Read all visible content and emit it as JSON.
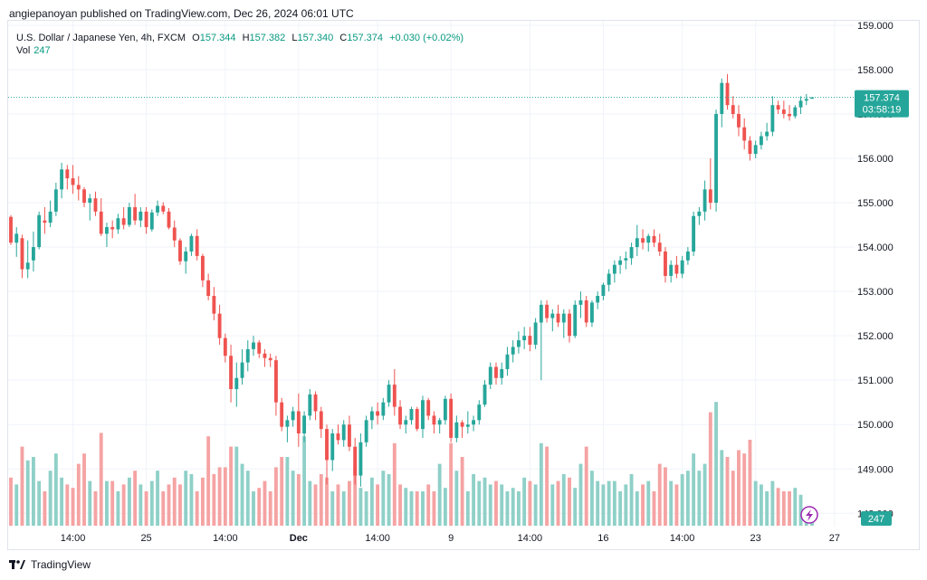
{
  "header": {
    "publisher_text": "angiepanoyan published on TradingView.com, Dec 26, 2024 06:01 UTC"
  },
  "legend": {
    "symbol": "U.S. Dollar / Japanese Yen, 4h, FXCM",
    "open_label": "O",
    "open": "157.344",
    "high_label": "H",
    "high": "157.382",
    "low_label": "L",
    "low": "157.340",
    "close_label": "C",
    "close": "157.374",
    "change": "+0.030 (+0.02%)",
    "vol_label": "Vol",
    "vol": "247"
  },
  "price_tag": {
    "price": "157.374",
    "countdown": "03:58:19"
  },
  "vol_tag": "247",
  "footer": {
    "brand": "TradingView"
  },
  "colors": {
    "up": "#26a69a",
    "down": "#ef5350",
    "vol_up": "#8fd0c8",
    "vol_down": "#f5a3a3",
    "price_line": "#26a69a"
  },
  "icons": {
    "replay": "lightning-icon"
  },
  "chart_data": {
    "type": "candlestick",
    "y_ticks": [
      "148.000",
      "149.000",
      "150.000",
      "151.000",
      "152.000",
      "153.000",
      "154.000",
      "155.000",
      "156.000",
      "157.000",
      "158.000",
      "159.000"
    ],
    "x_ticks": [
      {
        "label": "14:00",
        "index": 11
      },
      {
        "label": "25",
        "index": 24
      },
      {
        "label": "14:00",
        "index": 38
      },
      {
        "label": "Dec",
        "index": 51
      },
      {
        "label": "14:00",
        "index": 65
      },
      {
        "label": "9",
        "index": 78
      },
      {
        "label": "14:00",
        "index": 92
      },
      {
        "label": "16",
        "index": 105
      },
      {
        "label": "14:00",
        "index": 119
      },
      {
        "label": "23",
        "index": 132
      },
      {
        "label": "27",
        "index": 146
      }
    ],
    "ylim": [
      147.7,
      159.1
    ],
    "candles": [
      [
        154.68,
        154.72,
        154.05,
        154.1,
        1.4
      ],
      [
        154.1,
        154.45,
        153.78,
        154.3,
        1.2
      ],
      [
        154.2,
        154.28,
        153.3,
        153.5,
        2.3
      ],
      [
        153.5,
        154.15,
        153.3,
        153.65,
        1.9
      ],
      [
        153.7,
        154.35,
        153.45,
        154.0,
        2.0
      ],
      [
        154.0,
        154.8,
        153.95,
        154.72,
        1.3
      ],
      [
        154.6,
        154.9,
        154.3,
        154.55,
        1.0
      ],
      [
        154.55,
        155.05,
        154.45,
        154.8,
        1.6
      ],
      [
        154.8,
        155.45,
        154.7,
        155.3,
        2.1
      ],
      [
        155.3,
        155.9,
        155.1,
        155.75,
        1.4
      ],
      [
        155.75,
        155.85,
        155.3,
        155.55,
        1.2
      ],
      [
        155.55,
        155.85,
        155.2,
        155.4,
        1.1
      ],
      [
        155.4,
        155.6,
        155.05,
        155.3,
        1.8
      ],
      [
        155.3,
        155.35,
        154.9,
        155.0,
        2.1
      ],
      [
        155.0,
        155.2,
        154.6,
        155.1,
        1.3
      ],
      [
        155.1,
        155.25,
        154.7,
        154.8,
        1.0
      ],
      [
        154.8,
        155.1,
        154.25,
        154.3,
        2.7
      ],
      [
        154.3,
        154.55,
        154.0,
        154.45,
        1.3
      ],
      [
        154.45,
        154.6,
        154.2,
        154.4,
        1.3
      ],
      [
        154.4,
        154.75,
        154.3,
        154.65,
        1.0
      ],
      [
        154.65,
        154.9,
        154.4,
        154.5,
        1.2
      ],
      [
        154.5,
        155.0,
        154.45,
        154.9,
        1.4
      ],
      [
        154.9,
        155.2,
        154.5,
        154.6,
        1.6
      ],
      [
        154.6,
        154.9,
        154.45,
        154.8,
        1.2
      ],
      [
        154.8,
        154.9,
        154.3,
        154.45,
        1.0
      ],
      [
        154.4,
        154.85,
        154.35,
        154.78,
        1.3
      ],
      [
        154.78,
        155.05,
        154.7,
        154.93,
        1.6
      ],
      [
        154.93,
        155.01,
        154.74,
        154.8,
        1.0
      ],
      [
        154.8,
        154.88,
        154.4,
        154.44,
        1.2
      ],
      [
        154.44,
        154.6,
        154.0,
        154.15,
        1.4
      ],
      [
        154.15,
        154.2,
        153.6,
        153.68,
        1.2
      ],
      [
        153.68,
        154.0,
        153.4,
        153.9,
        1.6
      ],
      [
        153.9,
        154.3,
        153.8,
        154.25,
        1.5
      ],
      [
        154.25,
        154.4,
        153.7,
        153.8,
        1.0
      ],
      [
        153.8,
        153.85,
        153.1,
        153.25,
        1.4
      ],
      [
        153.25,
        153.4,
        152.8,
        152.9,
        2.6
      ],
      [
        152.9,
        153.1,
        152.35,
        152.5,
        1.5
      ],
      [
        152.5,
        152.7,
        151.8,
        151.95,
        1.7
      ],
      [
        151.95,
        152.05,
        151.4,
        151.55,
        1.7
      ],
      [
        151.55,
        151.8,
        150.5,
        150.8,
        2.3
      ],
      [
        150.8,
        151.4,
        150.4,
        151.05,
        2.3
      ],
      [
        151.05,
        151.7,
        150.9,
        151.4,
        1.8
      ],
      [
        151.4,
        151.9,
        151.2,
        151.7,
        1.6
      ],
      [
        151.7,
        152.0,
        151.55,
        151.85,
        1.0
      ],
      [
        151.85,
        151.9,
        151.5,
        151.6,
        1.1
      ],
      [
        151.6,
        151.7,
        151.3,
        151.5,
        1.3
      ],
      [
        151.5,
        151.6,
        151.3,
        151.45,
        1.0
      ],
      [
        151.45,
        151.55,
        150.2,
        150.5,
        1.7
      ],
      [
        150.5,
        150.6,
        149.85,
        149.95,
        2.0
      ],
      [
        149.95,
        150.2,
        149.6,
        150.1,
        2.0
      ],
      [
        150.1,
        150.4,
        149.95,
        150.3,
        1.6
      ],
      [
        150.3,
        150.7,
        149.5,
        149.8,
        1.5
      ],
      [
        149.8,
        150.3,
        149.6,
        150.2,
        2.6
      ],
      [
        150.2,
        150.8,
        150.1,
        150.68,
        1.3
      ],
      [
        150.68,
        150.75,
        150.1,
        150.3,
        1.2
      ],
      [
        150.3,
        150.4,
        149.7,
        149.9,
        1.5
      ],
      [
        149.9,
        150.0,
        148.65,
        149.2,
        1.4
      ],
      [
        149.2,
        149.9,
        148.95,
        149.8,
        1.0
      ],
      [
        149.8,
        150.0,
        149.55,
        149.65,
        1.2
      ],
      [
        149.65,
        150.1,
        149.5,
        150.0,
        1.0
      ],
      [
        150.0,
        150.2,
        149.4,
        149.5,
        1.3
      ],
      [
        149.5,
        149.7,
        148.65,
        148.85,
        1.8
      ],
      [
        148.85,
        149.8,
        148.6,
        149.6,
        1.1
      ],
      [
        149.6,
        150.2,
        149.5,
        150.1,
        1.0
      ],
      [
        150.1,
        150.4,
        149.9,
        150.3,
        1.4
      ],
      [
        150.3,
        150.5,
        150.0,
        150.2,
        1.2
      ],
      [
        150.2,
        150.6,
        150.1,
        150.5,
        1.6
      ],
      [
        150.5,
        151.0,
        150.4,
        150.9,
        1.5
      ],
      [
        150.9,
        151.25,
        150.2,
        150.4,
        2.4
      ],
      [
        150.4,
        150.55,
        149.9,
        150.0,
        1.2
      ],
      [
        150.0,
        150.2,
        149.8,
        150.1,
        1.1
      ],
      [
        150.1,
        150.4,
        150.0,
        150.35,
        1.0
      ],
      [
        150.35,
        150.4,
        149.85,
        149.9,
        1.0
      ],
      [
        149.9,
        150.65,
        149.7,
        150.55,
        1.0
      ],
      [
        150.55,
        150.6,
        150.1,
        150.2,
        1.2
      ],
      [
        150.2,
        150.3,
        149.8,
        150.0,
        1.0
      ],
      [
        150.0,
        150.15,
        149.8,
        150.1,
        1.8
      ],
      [
        150.1,
        150.65,
        150.0,
        150.58,
        1.1
      ],
      [
        150.58,
        150.7,
        149.6,
        149.7,
        2.4
      ],
      [
        149.7,
        150.2,
        149.6,
        150.05,
        1.6
      ],
      [
        150.05,
        150.1,
        149.7,
        149.95,
        2.0
      ],
      [
        149.95,
        150.3,
        149.8,
        150.0,
        1.0
      ],
      [
        150.0,
        150.2,
        149.85,
        150.1,
        1.5
      ],
      [
        150.1,
        150.55,
        150.0,
        150.45,
        1.3
      ],
      [
        150.45,
        151.0,
        150.4,
        150.9,
        1.4
      ],
      [
        150.9,
        151.4,
        150.8,
        151.3,
        1.2
      ],
      [
        151.3,
        151.4,
        150.9,
        151.05,
        1.3
      ],
      [
        151.05,
        151.4,
        150.9,
        151.25,
        1.2
      ],
      [
        151.25,
        151.75,
        151.1,
        151.58,
        1.0
      ],
      [
        151.58,
        151.9,
        151.4,
        151.75,
        1.1
      ],
      [
        151.75,
        152.1,
        151.6,
        151.9,
        1.0
      ],
      [
        151.9,
        152.2,
        151.7,
        152.0,
        1.4
      ],
      [
        152.0,
        152.2,
        151.65,
        151.8,
        1.3
      ],
      [
        151.8,
        152.4,
        151.7,
        152.3,
        1.2
      ],
      [
        152.3,
        152.8,
        151.0,
        152.7,
        2.4
      ],
      [
        152.7,
        152.8,
        152.3,
        152.4,
        2.3
      ],
      [
        152.4,
        152.6,
        152.1,
        152.5,
        1.2
      ],
      [
        152.5,
        152.7,
        152.2,
        152.3,
        1.3
      ],
      [
        152.3,
        152.6,
        151.95,
        152.5,
        1.5
      ],
      [
        152.5,
        152.6,
        151.85,
        152.0,
        1.4
      ],
      [
        152.0,
        152.8,
        151.95,
        152.7,
        1.1
      ],
      [
        152.7,
        153.0,
        152.4,
        152.8,
        1.8
      ],
      [
        152.8,
        152.9,
        152.2,
        152.3,
        2.3
      ],
      [
        152.3,
        152.8,
        152.2,
        152.75,
        1.6
      ],
      [
        152.75,
        153.0,
        152.6,
        152.9,
        1.3
      ],
      [
        152.9,
        153.2,
        152.8,
        153.15,
        1.2
      ],
      [
        153.15,
        153.5,
        153.0,
        153.4,
        1.3
      ],
      [
        153.4,
        153.7,
        153.2,
        153.6,
        1.3
      ],
      [
        153.6,
        153.8,
        153.4,
        153.7,
        1.0
      ],
      [
        153.7,
        153.9,
        153.5,
        153.75,
        1.2
      ],
      [
        153.75,
        154.1,
        153.6,
        154.0,
        1.5
      ],
      [
        154.0,
        154.5,
        153.8,
        154.2,
        1.0
      ],
      [
        154.2,
        154.4,
        153.95,
        154.1,
        1.2
      ],
      [
        154.1,
        154.3,
        153.9,
        154.25,
        1.3
      ],
      [
        154.25,
        154.4,
        154.0,
        154.1,
        1.0
      ],
      [
        154.1,
        154.3,
        153.8,
        153.9,
        1.8
      ],
      [
        153.9,
        154.0,
        153.2,
        153.35,
        1.7
      ],
      [
        153.35,
        153.7,
        153.2,
        153.6,
        1.3
      ],
      [
        153.6,
        153.8,
        153.3,
        153.4,
        1.2
      ],
      [
        153.4,
        153.8,
        153.3,
        153.7,
        1.5
      ],
      [
        153.7,
        154.0,
        153.6,
        153.9,
        1.6
      ],
      [
        153.9,
        154.8,
        153.8,
        154.7,
        2.1
      ],
      [
        154.7,
        154.9,
        154.5,
        154.8,
        1.6
      ],
      [
        154.8,
        155.5,
        154.6,
        155.3,
        1.8
      ],
      [
        155.3,
        156.0,
        154.85,
        155.0,
        3.3
      ],
      [
        155.0,
        157.1,
        154.8,
        157.0,
        3.6
      ],
      [
        157.0,
        157.8,
        156.7,
        157.7,
        2.2
      ],
      [
        157.7,
        157.9,
        157.1,
        157.2,
        2.0
      ],
      [
        157.2,
        157.4,
        156.9,
        157.0,
        1.6
      ],
      [
        157.0,
        157.2,
        156.5,
        156.7,
        2.2
      ],
      [
        156.7,
        156.9,
        156.2,
        156.4,
        2.1
      ],
      [
        156.4,
        156.5,
        155.95,
        156.1,
        2.5
      ],
      [
        156.1,
        156.4,
        156.0,
        156.3,
        1.3
      ],
      [
        156.3,
        156.6,
        156.2,
        156.5,
        1.2
      ],
      [
        156.5,
        156.8,
        156.4,
        156.6,
        1.0
      ],
      [
        156.6,
        157.4,
        156.5,
        157.2,
        1.3
      ],
      [
        157.2,
        157.3,
        157.0,
        157.1,
        1.1
      ],
      [
        157.1,
        157.3,
        156.9,
        157.0,
        1.0
      ],
      [
        157.0,
        157.2,
        156.85,
        156.95,
        1.0
      ],
      [
        156.95,
        157.2,
        156.9,
        157.15,
        1.1
      ],
      [
        157.15,
        157.4,
        157.0,
        157.3,
        0.9
      ],
      [
        157.3,
        157.45,
        157.2,
        157.34,
        0.5
      ],
      [
        157.344,
        157.382,
        157.34,
        157.374,
        0.3
      ]
    ]
  }
}
